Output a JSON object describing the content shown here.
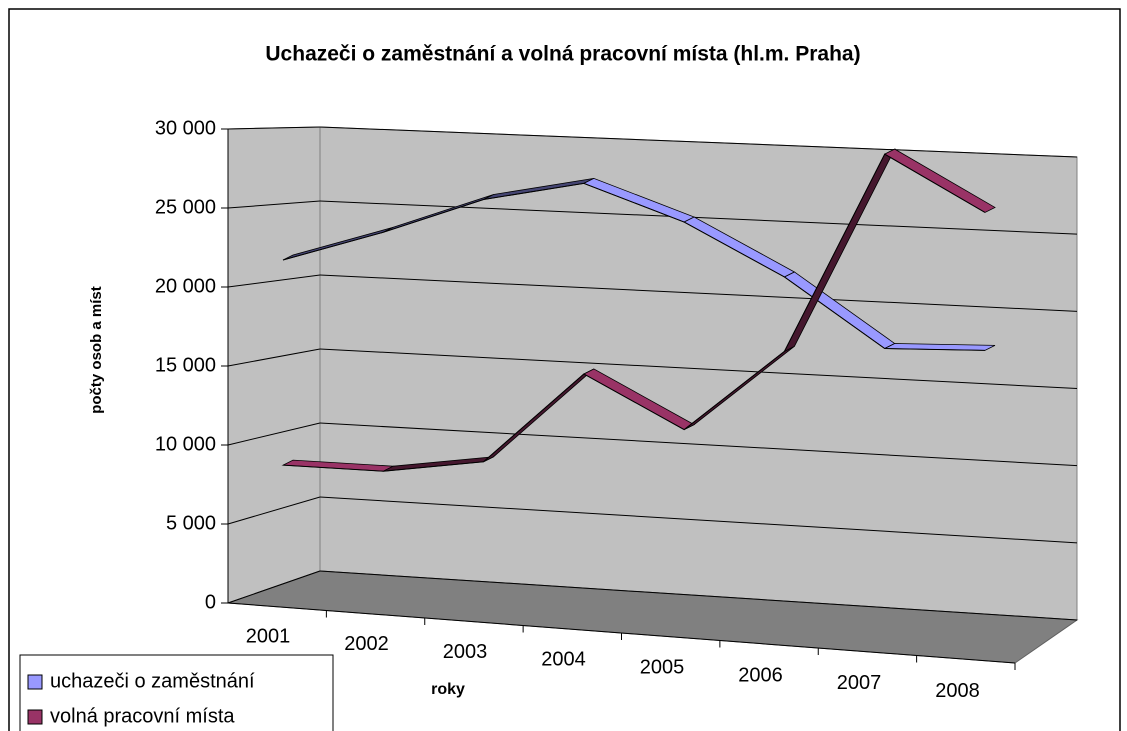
{
  "chart_data": {
    "type": "line3d",
    "title": "Uchazeči o zaměstnání a volná pracovní místa (hl.m. Praha)",
    "y_label": "počty osob a míst",
    "x_label": "roky",
    "categories": [
      "2001",
      "2002",
      "2003",
      "2004",
      "2005",
      "2006",
      "2007",
      "2008"
    ],
    "series": [
      {
        "name": "uchazeči o zaměstnání",
        "color": "#9999ff",
        "values": [
          21400,
          23500,
          25900,
          27200,
          25000,
          21800,
          17600,
          17800
        ]
      },
      {
        "name": "volná pracovní místa",
        "color": "#993366",
        "values": [
          8000,
          8000,
          9000,
          15000,
          11800,
          17100,
          29800,
          26400
        ]
      }
    ],
    "ylim": [
      0,
      30000
    ],
    "yticks": [
      {
        "value": 0,
        "label": "0"
      },
      {
        "value": 5000,
        "label": "5 000"
      },
      {
        "value": 10000,
        "label": "10 000"
      },
      {
        "value": 15000,
        "label": "15 000"
      },
      {
        "value": 20000,
        "label": "20 000"
      },
      {
        "value": 25000,
        "label": "25 000"
      },
      {
        "value": 30000,
        "label": "30 000"
      }
    ],
    "grid": true
  }
}
